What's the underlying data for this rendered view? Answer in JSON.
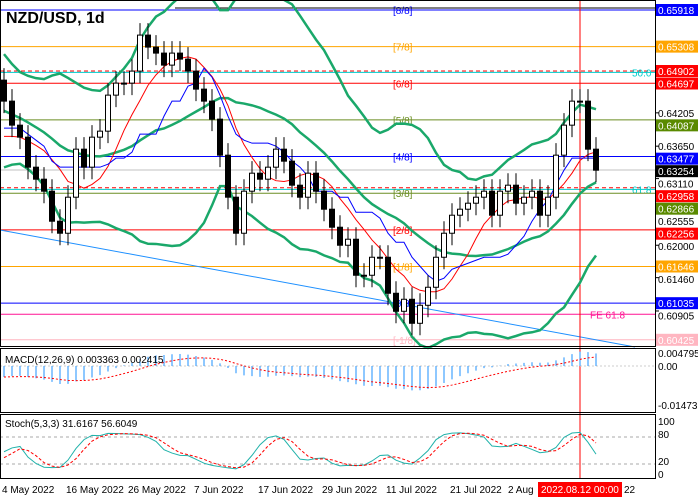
{
  "header": {
    "title": "NZD/USD, 1d"
  },
  "macd_label": "MACD(12,26,9) 0.003363 0.002415",
  "stoch_label": "Stoch(5,3,3) 31.6167 56.6049",
  "macd_axis": [
    "0.004795",
    "0.00",
    "-0.014736"
  ],
  "stoch_axis": [
    "100",
    "80",
    "20",
    "0"
  ],
  "x_labels": [
    "4 May 2022",
    "16 May 2022",
    "26 May 2022",
    "7 Jun 2022",
    "17 Jun 2022",
    "29 Jun 2022",
    "11 Jul 2022",
    "21 Jul 2022",
    "2 Aug",
    "22"
  ],
  "cursor_date": "2022.08.12 00:00",
  "price_ticks": [
    "0.64205",
    "0.63650",
    "0.63110",
    "0.62555",
    "0.62000",
    "0.61460",
    "0.60905"
  ],
  "levels": [
    {
      "price": 0.65918,
      "color": "#0000ff",
      "tag": "0.65918",
      "label": "[8/8]",
      "tagbg": "#0000ff"
    },
    {
      "price": 0.65308,
      "color": "#ffa500",
      "tag": "0.65308",
      "label": "[7/8]",
      "tagbg": "#ffa500"
    },
    {
      "price": 0.64902,
      "color": "#ff0000",
      "tag": "0.64902",
      "label": "",
      "tagbg": "#ff0000",
      "dash": true
    },
    {
      "price": 0.6488,
      "color": "#00cccc",
      "tag": "",
      "label": "50.0"
    },
    {
      "price": 0.64697,
      "color": "#ff0000",
      "tag": "0.64697",
      "label": "[6/8]",
      "tagbg": "#ff0000"
    },
    {
      "price": 0.64087,
      "color": "#6b8e23",
      "tag": "0.64087",
      "label": "[5/8]",
      "tagbg": "#5a8a00"
    },
    {
      "price": 0.63477,
      "color": "#0000ff",
      "tag": "0.63477",
      "label": "[4/8]",
      "tagbg": "#0000ff"
    },
    {
      "price": 0.63254,
      "color": "#c0c0c0",
      "tag": "0.63254",
      "label": "",
      "tagbg": "#000000"
    },
    {
      "price": 0.62958,
      "color": "#ff0000",
      "tag": "0.62958",
      "label": "",
      "tagbg": "#ff0000",
      "dash": true
    },
    {
      "price": 0.6293,
      "color": "#00cccc",
      "tag": "",
      "label": "61.8"
    },
    {
      "price": 0.62866,
      "color": "#6b8e23",
      "tag": "0.62866",
      "label": "[3/8]",
      "tagbg": "#5a8a00"
    },
    {
      "price": 0.62256,
      "color": "#ff0000",
      "tag": "0.62256",
      "label": "[2/8]",
      "tagbg": "#ff0000"
    },
    {
      "price": 0.61646,
      "color": "#ffa500",
      "tag": "0.61646",
      "label": "[1/8]",
      "tagbg": "#ffa500"
    },
    {
      "price": 0.61035,
      "color": "#0000ff",
      "tag": "0.61035",
      "label": "[0/8]",
      "tagbg": "#0000ff"
    },
    {
      "price": 0.6085,
      "color": "#ff1493",
      "tag": "",
      "label": "FE 61.8"
    },
    {
      "price": 0.60425,
      "color": "#ffb6c1",
      "tag": "0.60425",
      "label": "[-1/8]",
      "tagbg": "#ffb6c1"
    }
  ],
  "chart_data": {
    "type": "candlestick",
    "title": "NZD/USD, 1d",
    "start": "2022-05-04",
    "end": "2022-08-16",
    "ylim": [
      0.6035,
      0.6605
    ],
    "closes": [
      0.644,
      0.64,
      0.638,
      0.633,
      0.631,
      0.629,
      0.624,
      0.622,
      0.628,
      0.636,
      0.633,
      0.638,
      0.639,
      0.645,
      0.647,
      0.647,
      0.649,
      0.655,
      0.653,
      0.652,
      0.65,
      0.652,
      0.651,
      0.649,
      0.646,
      0.644,
      0.641,
      0.635,
      0.628,
      0.622,
      0.629,
      0.632,
      0.631,
      0.633,
      0.636,
      0.634,
      0.63,
      0.628,
      0.632,
      0.629,
      0.626,
      0.623,
      0.62,
      0.621,
      0.615,
      0.615,
      0.618,
      0.618,
      0.612,
      0.609,
      0.611,
      0.607,
      0.61,
      0.613,
      0.618,
      0.622,
      0.625,
      0.626,
      0.627,
      0.628,
      0.629,
      0.625,
      0.629,
      0.63,
      0.627,
      0.628,
      0.629,
      0.625,
      0.628,
      0.635,
      0.64,
      0.644,
      0.644,
      0.636,
      0.6325
    ],
    "current_price": 0.63254
  },
  "colors": {
    "bands": "#1aa86a",
    "ma": "#ff0000",
    "ma2": "#0000ff",
    "macd_hist": "#1e90ff",
    "signal": "#ff0000",
    "stoch": "#20b2aa"
  }
}
